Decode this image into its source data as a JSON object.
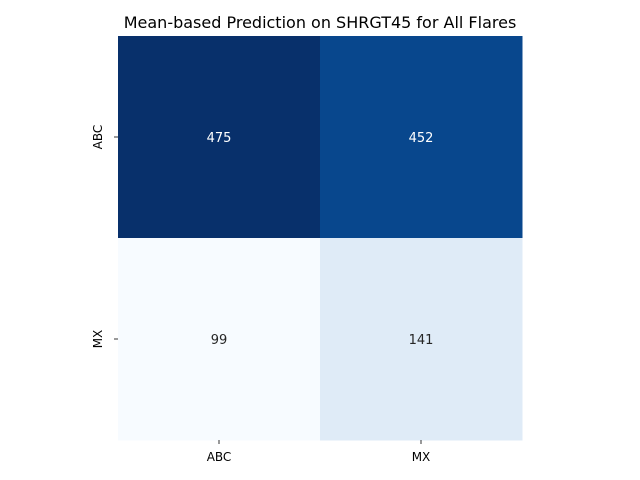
{
  "chart_data": {
    "type": "heatmap",
    "title": "Mean-based Prediction on SHRGT45 for All Flares",
    "x_categories": [
      "ABC",
      "MX"
    ],
    "y_categories": [
      "ABC",
      "MX"
    ],
    "values": [
      [
        475,
        452
      ],
      [
        99,
        141
      ]
    ],
    "colormap": "Blues",
    "colors": [
      [
        "#08306b",
        "#08478d"
      ],
      [
        "#f7fbff",
        "#dfebf7"
      ]
    ],
    "text_colors": [
      [
        "#ffffff",
        "#ffffff"
      ],
      [
        "#262626",
        "#262626"
      ]
    ],
    "colorbar": false,
    "grid": false
  }
}
